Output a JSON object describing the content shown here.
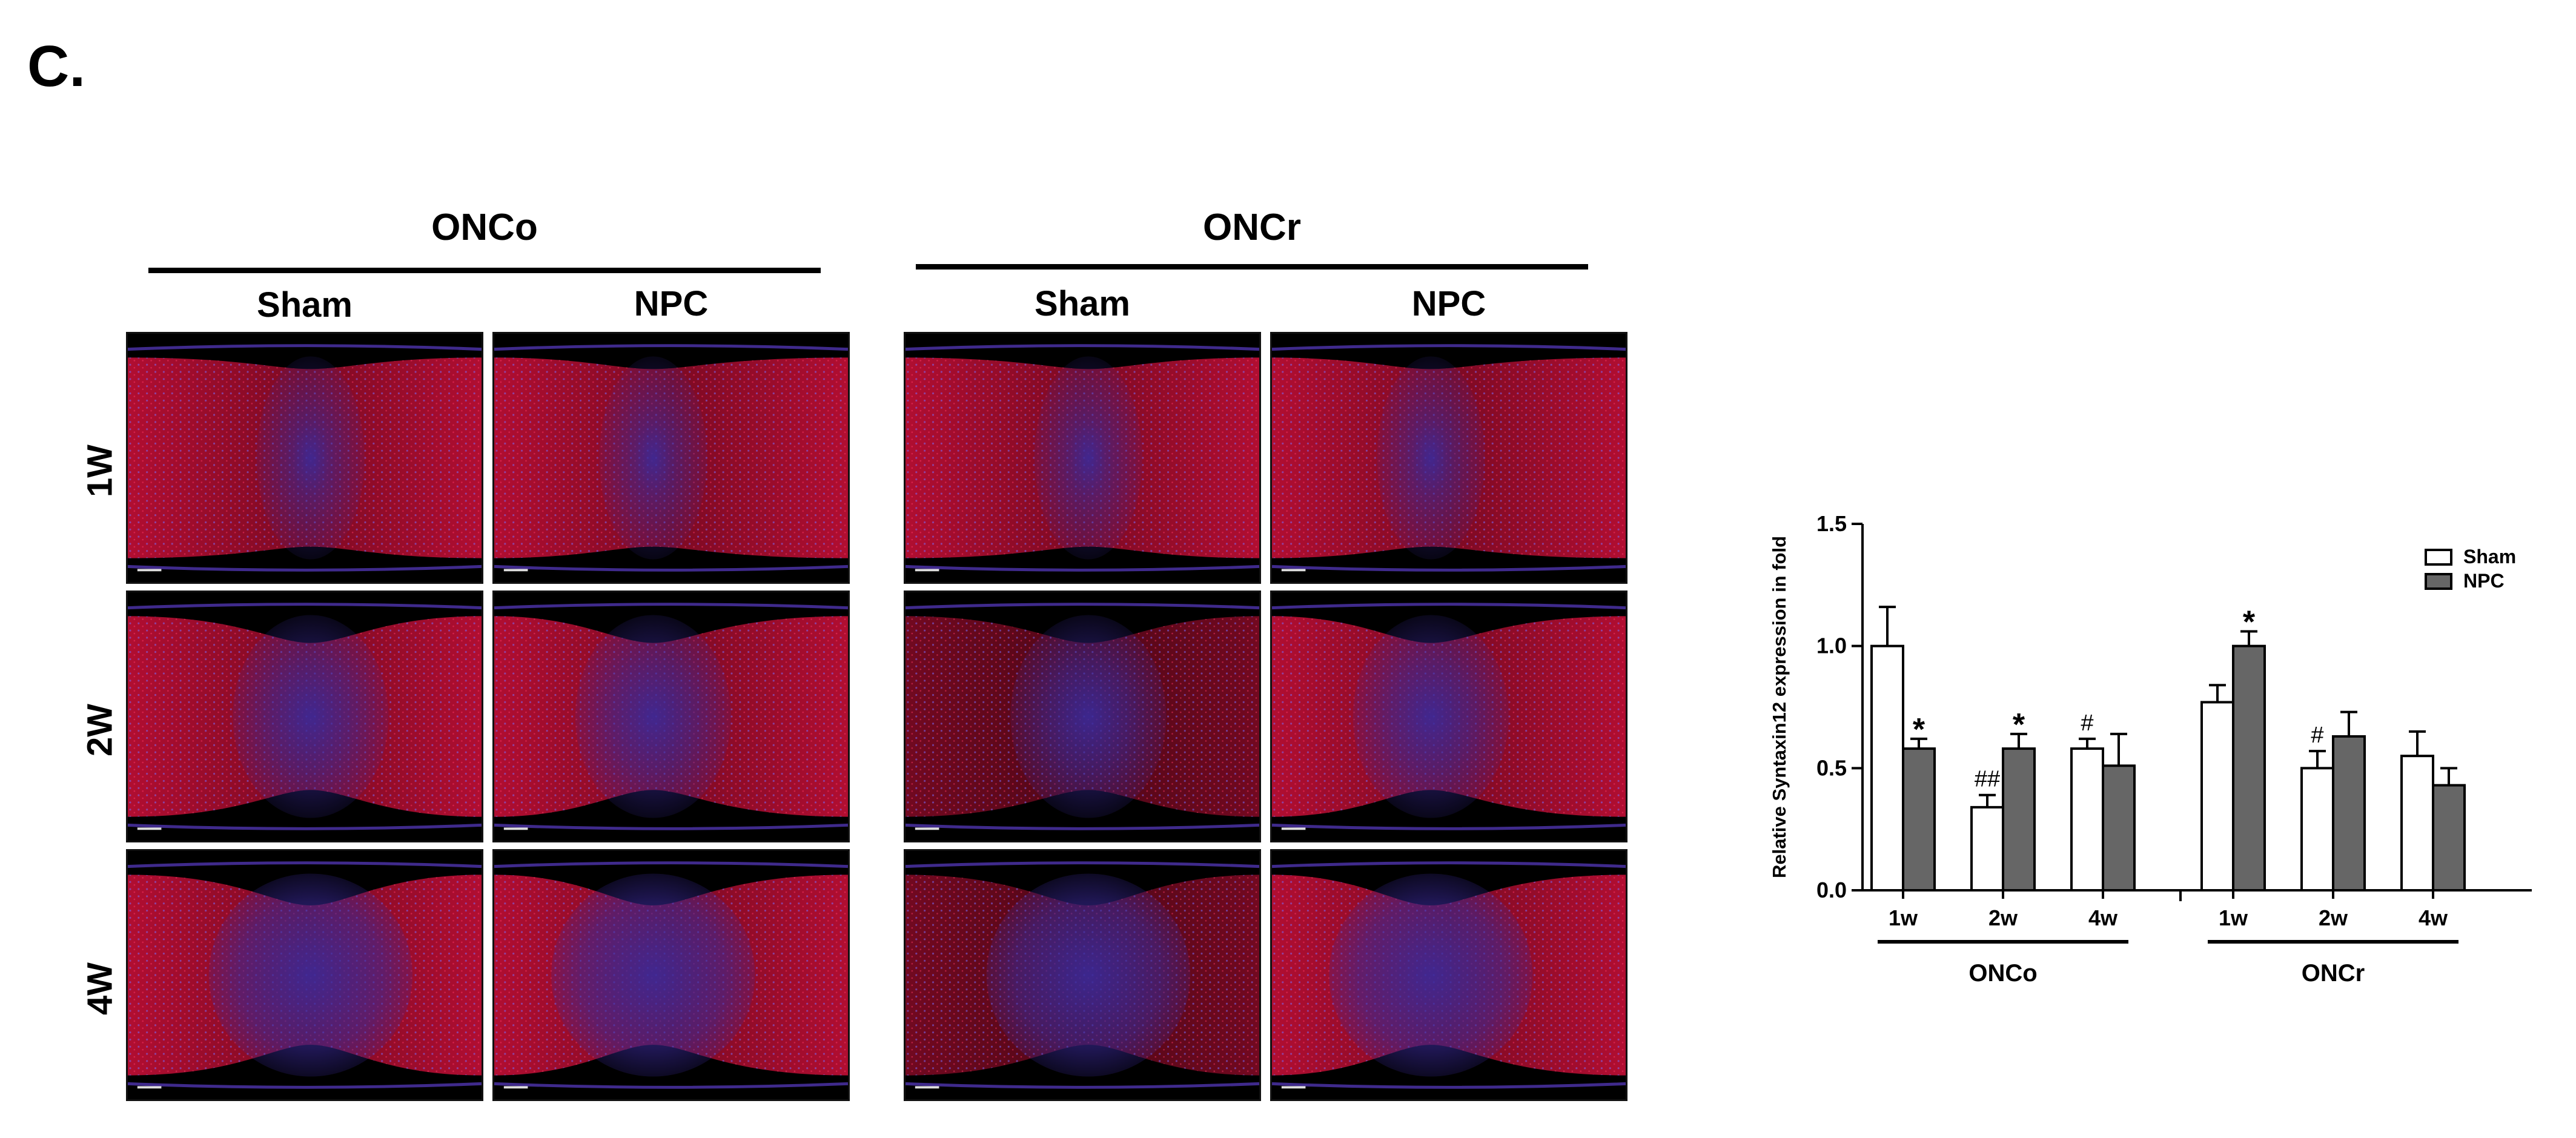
{
  "panel": {
    "label": "C."
  },
  "groups": [
    {
      "title": "ONCo",
      "columns": [
        "Sham",
        "NPC"
      ]
    },
    {
      "title": "ONCr",
      "columns": [
        "Sham",
        "NPC"
      ]
    }
  ],
  "rows": [
    "1W",
    "2W",
    "4W"
  ],
  "colors": {
    "red_stain": "#d0103a",
    "blue_stain": "#3a2a9a",
    "bar_sham": "#ffffff",
    "bar_npc": "#666666"
  },
  "chart_data": {
    "type": "bar",
    "ylabel": "Relative Syntaxin12 expression in fold",
    "ylim": [
      0,
      1.5
    ],
    "yticks": [
      "0.0",
      "0.5",
      "1.0",
      "1.5"
    ],
    "groups": [
      {
        "name": "ONCo",
        "categories": [
          "1w",
          "2w",
          "4w"
        ]
      },
      {
        "name": "ONCr",
        "categories": [
          "1w",
          "2w",
          "4w"
        ]
      }
    ],
    "series": [
      {
        "name": "Sham",
        "color": "#ffffff",
        "values": [
          1.0,
          0.34,
          0.58,
          0.77,
          0.5,
          0.55
        ],
        "errors": [
          0.16,
          0.05,
          0.04,
          0.07,
          0.07,
          0.1
        ],
        "annotations": [
          "",
          "##",
          "#",
          "",
          "#",
          ""
        ]
      },
      {
        "name": "NPC",
        "color": "#666666",
        "values": [
          0.58,
          0.58,
          0.51,
          1.0,
          0.63,
          0.43
        ],
        "errors": [
          0.04,
          0.06,
          0.13,
          0.06,
          0.1,
          0.07
        ],
        "annotations": [
          "*",
          "*",
          "",
          "*",
          "",
          ""
        ]
      }
    ],
    "legend": "top-right"
  }
}
